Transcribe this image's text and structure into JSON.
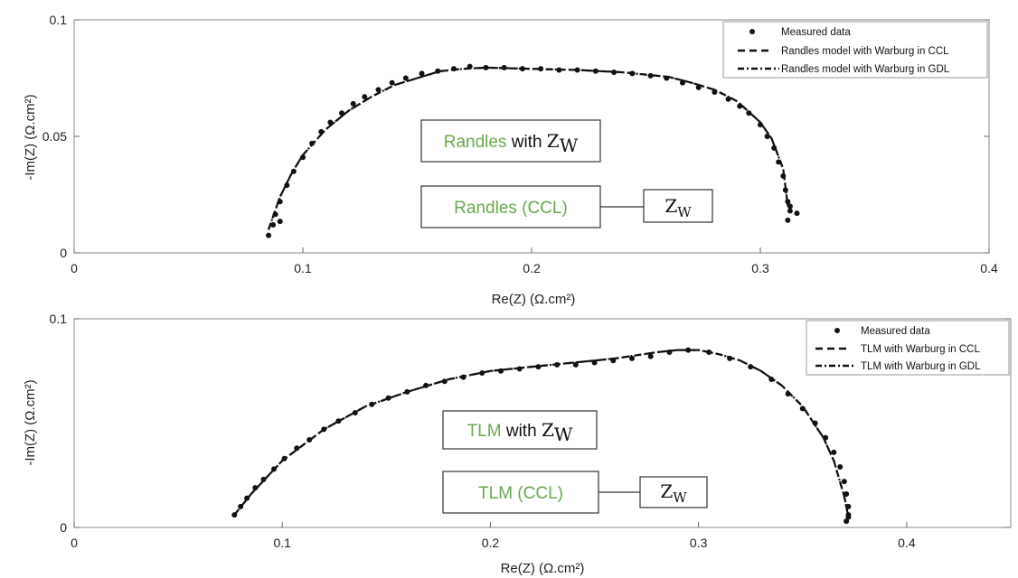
{
  "chart_data": [
    {
      "type": "scatter",
      "xlabel": "Re(Z) (Ω.cm²)",
      "ylabel": "-Im(Z) (Ω.cm²)",
      "xlim": [
        0,
        0.4
      ],
      "ylim": [
        0,
        0.1
      ],
      "xticks": [
        "0",
        "0.1",
        "0.2",
        "0.3",
        "0.4"
      ],
      "yticks": [
        "0",
        "0.05",
        "0.1"
      ],
      "legend_position": "top-right",
      "legend": [
        "Measured data",
        "Randles model with Warburg in CCL",
        "Randles model with Warburg in GDL"
      ],
      "series": [
        {
          "name": "Measured data",
          "style": "dots",
          "x": [
            0.085,
            0.087,
            0.09,
            0.088,
            0.09,
            0.093,
            0.096,
            0.1,
            0.104,
            0.108,
            0.112,
            0.117,
            0.122,
            0.127,
            0.133,
            0.139,
            0.145,
            0.152,
            0.159,
            0.166,
            0.173,
            0.18,
            0.188,
            0.196,
            0.204,
            0.212,
            0.22,
            0.228,
            0.236,
            0.244,
            0.252,
            0.259,
            0.266,
            0.273,
            0.28,
            0.286,
            0.291,
            0.295,
            0.3,
            0.303,
            0.306,
            0.308,
            0.31,
            0.311,
            0.312,
            0.313,
            0.312,
            0.316,
            0.313
          ],
          "y": [
            0.0075,
            0.012,
            0.0135,
            0.0165,
            0.022,
            0.029,
            0.035,
            0.041,
            0.047,
            0.052,
            0.056,
            0.06,
            0.064,
            0.067,
            0.07,
            0.073,
            0.075,
            0.077,
            0.078,
            0.079,
            0.08,
            0.0795,
            0.0795,
            0.079,
            0.079,
            0.0785,
            0.0785,
            0.078,
            0.0775,
            0.077,
            0.076,
            0.075,
            0.073,
            0.071,
            0.069,
            0.066,
            0.063,
            0.06,
            0.055,
            0.05,
            0.045,
            0.039,
            0.033,
            0.027,
            0.022,
            0.018,
            0.014,
            0.017,
            0.02
          ]
        },
        {
          "name": "Randles model with Warburg in CCL",
          "style": "dashed",
          "x": [
            0.085,
            0.09,
            0.095,
            0.1,
            0.11,
            0.12,
            0.13,
            0.14,
            0.15,
            0.16,
            0.17,
            0.18,
            0.2,
            0.22,
            0.24,
            0.26,
            0.27,
            0.28,
            0.29,
            0.3,
            0.305,
            0.31,
            0.312
          ],
          "y": [
            0.01,
            0.024,
            0.034,
            0.042,
            0.053,
            0.061,
            0.067,
            0.072,
            0.075,
            0.078,
            0.079,
            0.0795,
            0.079,
            0.0785,
            0.0775,
            0.0755,
            0.073,
            0.07,
            0.065,
            0.056,
            0.049,
            0.036,
            0.02
          ]
        },
        {
          "name": "Randles model with Warburg in GDL",
          "style": "dashdot",
          "x": [
            0.085,
            0.09,
            0.095,
            0.1,
            0.11,
            0.12,
            0.13,
            0.14,
            0.15,
            0.16,
            0.17,
            0.18,
            0.2,
            0.22,
            0.24,
            0.26,
            0.27,
            0.28,
            0.29,
            0.3,
            0.305,
            0.31,
            0.312
          ],
          "y": [
            0.01,
            0.024,
            0.034,
            0.042,
            0.053,
            0.061,
            0.067,
            0.072,
            0.075,
            0.078,
            0.079,
            0.0795,
            0.079,
            0.0785,
            0.0775,
            0.0755,
            0.073,
            0.07,
            0.065,
            0.056,
            0.049,
            0.036,
            0.02
          ]
        }
      ],
      "annotations": [
        {
          "green": "Randles",
          "black": " with ",
          "zw_base": "Z",
          "zw_sub": "W"
        },
        {
          "green": "Randles (CCL)",
          "zw_base": "Z",
          "zw_sub": "W"
        }
      ]
    },
    {
      "type": "scatter",
      "xlabel": "Re(Z) (Ω.cm²)",
      "ylabel": "-Im(Z) (Ω.cm²)",
      "xlim": [
        0,
        0.45
      ],
      "ylim": [
        0,
        0.1
      ],
      "xticks": [
        "0",
        "0.1",
        "0.2",
        "0.3",
        "0.4"
      ],
      "yticks": [
        "0",
        "0.1"
      ],
      "legend_position": "top-right",
      "legend": [
        "Measured data",
        "TLM with Warburg in CCL",
        "TLM with Warburg in GDL"
      ],
      "series": [
        {
          "name": "Measured data",
          "style": "dots",
          "x": [
            0.077,
            0.08,
            0.083,
            0.087,
            0.091,
            0.096,
            0.101,
            0.107,
            0.113,
            0.12,
            0.127,
            0.135,
            0.143,
            0.151,
            0.16,
            0.169,
            0.178,
            0.187,
            0.196,
            0.205,
            0.214,
            0.223,
            0.232,
            0.241,
            0.25,
            0.259,
            0.268,
            0.277,
            0.286,
            0.295,
            0.305,
            0.315,
            0.325,
            0.335,
            0.343,
            0.35,
            0.356,
            0.361,
            0.365,
            0.368,
            0.37,
            0.371,
            0.372,
            0.372,
            0.371,
            0.372
          ],
          "y": [
            0.006,
            0.01,
            0.014,
            0.019,
            0.023,
            0.028,
            0.033,
            0.038,
            0.042,
            0.047,
            0.051,
            0.055,
            0.059,
            0.062,
            0.065,
            0.068,
            0.07,
            0.072,
            0.074,
            0.075,
            0.076,
            0.077,
            0.078,
            0.078,
            0.079,
            0.08,
            0.081,
            0.082,
            0.084,
            0.085,
            0.084,
            0.081,
            0.077,
            0.071,
            0.064,
            0.057,
            0.05,
            0.043,
            0.036,
            0.029,
            0.022,
            0.016,
            0.01,
            0.005,
            0.003,
            0.006
          ]
        },
        {
          "name": "TLM with Warburg in CCL",
          "style": "dashed",
          "x": [
            0.077,
            0.085,
            0.1,
            0.12,
            0.14,
            0.16,
            0.18,
            0.2,
            0.22,
            0.24,
            0.26,
            0.28,
            0.29,
            0.3,
            0.31,
            0.32,
            0.33,
            0.34,
            0.35,
            0.36,
            0.365,
            0.37,
            0.372
          ],
          "y": [
            0.006,
            0.016,
            0.032,
            0.047,
            0.058,
            0.065,
            0.071,
            0.075,
            0.077,
            0.079,
            0.081,
            0.084,
            0.085,
            0.085,
            0.083,
            0.08,
            0.075,
            0.068,
            0.058,
            0.043,
            0.032,
            0.015,
            0.005
          ]
        },
        {
          "name": "TLM with Warburg in GDL",
          "style": "dashdot",
          "x": [
            0.077,
            0.085,
            0.1,
            0.12,
            0.14,
            0.16,
            0.18,
            0.2,
            0.22,
            0.24,
            0.26,
            0.28,
            0.29,
            0.3,
            0.31,
            0.32,
            0.33,
            0.34,
            0.35,
            0.36,
            0.365,
            0.37,
            0.372
          ],
          "y": [
            0.006,
            0.016,
            0.032,
            0.047,
            0.058,
            0.065,
            0.071,
            0.075,
            0.077,
            0.079,
            0.081,
            0.084,
            0.085,
            0.085,
            0.083,
            0.08,
            0.075,
            0.068,
            0.058,
            0.043,
            0.032,
            0.015,
            0.005
          ]
        }
      ],
      "annotations": [
        {
          "green": "TLM",
          "black": " with ",
          "zw_base": "Z",
          "zw_sub": "W"
        },
        {
          "green": "TLM (CCL)",
          "zw_base": "Z",
          "zw_sub": "W"
        }
      ]
    }
  ]
}
